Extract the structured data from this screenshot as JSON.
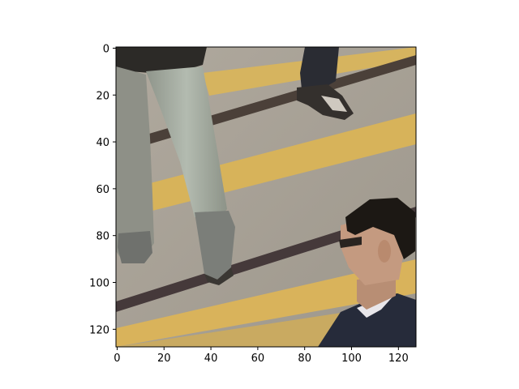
{
  "image": {
    "description": "Cropped street photo: pedestrian legs in grey trousers and sneakers walking on asphalt with yellow road markings and tram rails; a second person's feet at top; a dark-haired man with glasses in a dark suit at bottom right.",
    "palette": {
      "asphalt": "#a9a298",
      "yellow_marking": "#d7b35a",
      "rail": "#4b4039",
      "trousers": "#a7aea3",
      "suit": "#262b3a",
      "hair": "#1c1814",
      "skin": "#c49a80"
    }
  },
  "axes": {
    "x_ticks": [
      "0",
      "20",
      "40",
      "60",
      "80",
      "100",
      "120"
    ],
    "y_ticks": [
      "0",
      "20",
      "40",
      "60",
      "80",
      "100",
      "120"
    ],
    "x_range": [
      0,
      128
    ],
    "y_range": [
      0,
      128
    ],
    "y_inverted": true
  }
}
